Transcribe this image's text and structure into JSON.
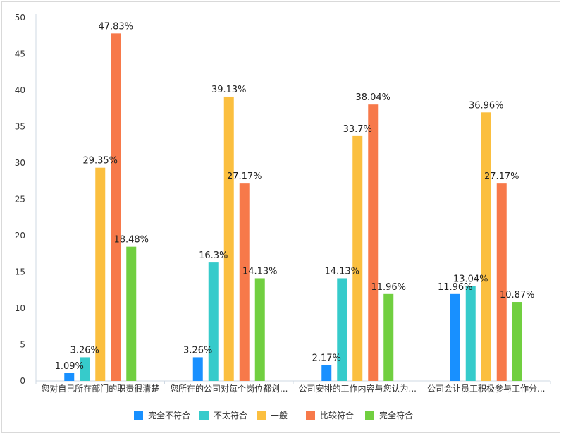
{
  "chart_data": {
    "type": "bar",
    "title": "",
    "xlabel": "",
    "ylabel": "",
    "ylim": [
      0,
      50
    ],
    "yticks": [
      0,
      5,
      10,
      15,
      20,
      25,
      30,
      35,
      40,
      45,
      50
    ],
    "categories": [
      "您对自己所在部门的职责很清楚",
      "您所在的公司对每个岗位都划...",
      "公司安排的工作内容与您认为...",
      "公司会让员工积极参与工作分..."
    ],
    "series": [
      {
        "name": "完全不符合",
        "color": "#1890ff",
        "values": [
          1.09,
          3.26,
          2.17,
          11.96
        ],
        "labels": [
          "1.09%",
          "3.26%",
          "2.17%",
          "11.96%"
        ]
      },
      {
        "name": "不太符合",
        "color": "#36cbcb",
        "values": [
          3.26,
          16.3,
          14.13,
          13.04
        ],
        "labels": [
          "3.26%",
          "16.3%",
          "14.13%",
          "13.04%"
        ]
      },
      {
        "name": "一般",
        "color": "#fbbf3f",
        "values": [
          29.35,
          39.13,
          33.7,
          36.96
        ],
        "labels": [
          "29.35%",
          "39.13%",
          "33.7%",
          "36.96%"
        ]
      },
      {
        "name": "比较符合",
        "color": "#f7794a",
        "values": [
          47.83,
          27.17,
          38.04,
          27.17
        ],
        "labels": [
          "47.83%",
          "27.17%",
          "38.04%",
          "27.17%"
        ]
      },
      {
        "name": "完全符合",
        "color": "#71cf40",
        "values": [
          18.48,
          14.13,
          11.96,
          10.87
        ],
        "labels": [
          "18.48%",
          "14.13%",
          "11.96%",
          "10.87%"
        ]
      }
    ],
    "grid": false,
    "legend_position": "bottom"
  }
}
